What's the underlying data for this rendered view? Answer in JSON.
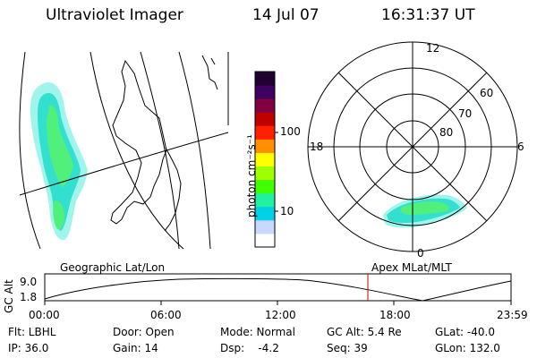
{
  "header": {
    "title": "Ultraviolet Imager",
    "date": "14 Jul 07",
    "time": "16:31:37 UT"
  },
  "colorbar": {
    "unit_label": "photon cm⁻²s⁻¹",
    "tick_100": "100",
    "tick_10": "10",
    "colors": [
      "#ffffff",
      "#c8d8ff",
      "#00d0e8",
      "#20f0a0",
      "#40ff00",
      "#a0ff00",
      "#ffff00",
      "#ff9000",
      "#ff2000",
      "#c00000",
      "#800040",
      "#400060",
      "#200030"
    ]
  },
  "polar_plot": {
    "mlt_labels": {
      "top": "12",
      "left": "18",
      "right": "6",
      "bottom": "0"
    },
    "lat_labels": [
      "60",
      "70",
      "80"
    ]
  },
  "orbit_panel": {
    "left_label": "Geographic Lat/Lon",
    "right_label": "Apex MLat/MLT",
    "y_axis_label": "GC Alt",
    "y_max": "9.0",
    "y_min": "1.8",
    "x_ticks": [
      "00:00",
      "06:00",
      "12:00",
      "18:00",
      "23:59"
    ],
    "marker_color": "#c00000"
  },
  "status": {
    "row1": [
      {
        "key": "flt",
        "text": "Flt: LBHL"
      },
      {
        "key": "door",
        "text": "Door: Open"
      },
      {
        "key": "mode",
        "text": "Mode: Normal"
      },
      {
        "key": "gcalt",
        "text": "GC Alt: 5.4 Re"
      },
      {
        "key": "glat",
        "text": "GLat: -40.0"
      }
    ],
    "row2": [
      {
        "key": "ip",
        "text": "IP: 36.0"
      },
      {
        "key": "gain",
        "text": "Gain: 14"
      },
      {
        "key": "dsp",
        "text": "Dsp:    -4.2"
      },
      {
        "key": "seq",
        "text": "Seq: 39"
      },
      {
        "key": "glon",
        "text": "GLon: 132.0"
      }
    ]
  }
}
